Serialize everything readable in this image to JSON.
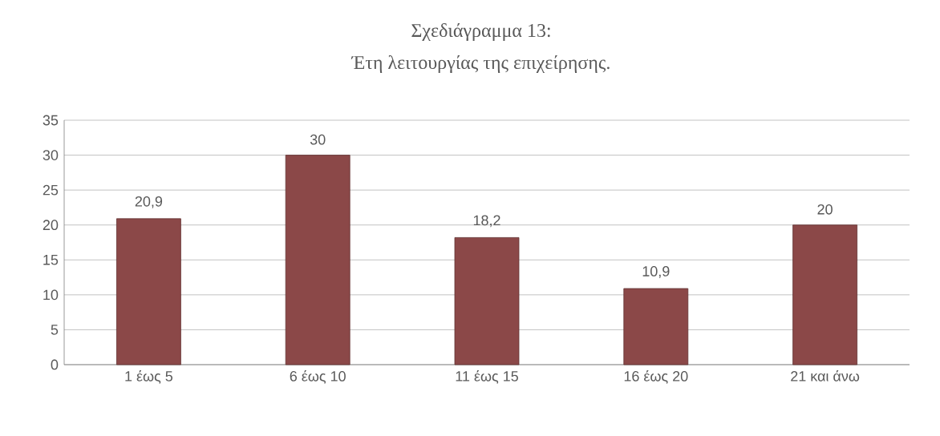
{
  "chart_data": {
    "type": "bar",
    "title": "Σχεδιάγραμμα 13:",
    "subtitle": "Έτη λειτουργίας της επιχείρησης.",
    "categories": [
      "1 έως 5",
      "6 έως 10",
      "11 έως 15",
      "16 έως 20",
      "21 και άνω"
    ],
    "values": [
      20.9,
      30,
      18.2,
      10.9,
      20
    ],
    "value_labels": [
      "20,9",
      "30",
      "18,2",
      "10,9",
      "20"
    ],
    "color": "#8b4848",
    "ylim": [
      0,
      35
    ],
    "yticks": [
      0,
      5,
      10,
      15,
      20,
      25,
      30,
      35
    ],
    "grid": "y"
  }
}
